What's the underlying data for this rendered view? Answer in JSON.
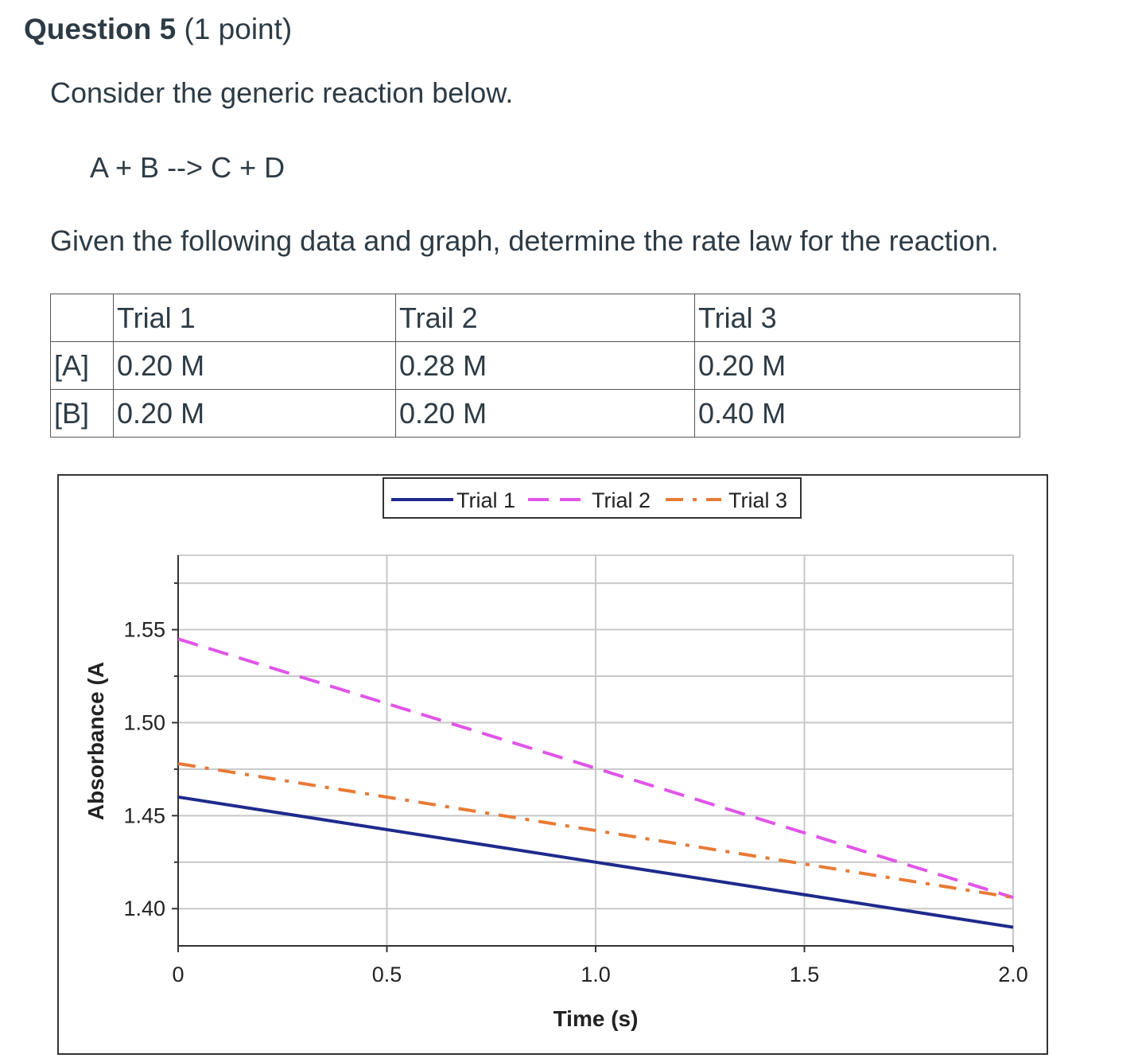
{
  "question": {
    "title": "Question 5",
    "points": "(1 point)"
  },
  "prompt": {
    "intro": "Consider the generic reaction below.",
    "reaction": "A + B --> C + D",
    "instruction": "Given the following data and graph, determine the rate law for the reaction."
  },
  "table": {
    "header": [
      "",
      "Trial 1",
      "Trail 2",
      "Trial 3"
    ],
    "rows": [
      [
        "[A]",
        "0.20 M",
        "0.28 M",
        "0.20 M"
      ],
      [
        "[B]",
        "0.20 M",
        "0.20 M",
        "0.40 M"
      ]
    ]
  },
  "chart_data": {
    "type": "line",
    "title": "",
    "xlabel": "Time (s)",
    "ylabel": "Absorbance (A",
    "xlim": [
      0,
      2.0
    ],
    "ylim": [
      1.38,
      1.59
    ],
    "x_ticks": [
      "0",
      "0.5",
      "1.0",
      "1.5",
      "2.0"
    ],
    "x_tick_values": [
      0,
      0.5,
      1.0,
      1.5,
      2.0
    ],
    "y_ticks": [
      "1.40",
      "1.45",
      "1.50",
      "1.55"
    ],
    "y_tick_values": [
      1.4,
      1.45,
      1.5,
      1.55
    ],
    "grid": true,
    "legend_position": "top-center",
    "series": [
      {
        "name": "Trial 1",
        "x": [
          0,
          2.0
        ],
        "values": [
          1.46,
          1.39
        ],
        "color": "#1f2a8c",
        "dash": "solid"
      },
      {
        "name": "Trial 2",
        "x": [
          0,
          2.0
        ],
        "values": [
          1.545,
          1.406
        ],
        "color": "#e055e8",
        "dash": "dashed"
      },
      {
        "name": "Trial 3",
        "x": [
          0,
          2.0
        ],
        "values": [
          1.478,
          1.406
        ],
        "color": "#e87a35",
        "dash": "dash-dot"
      }
    ]
  }
}
